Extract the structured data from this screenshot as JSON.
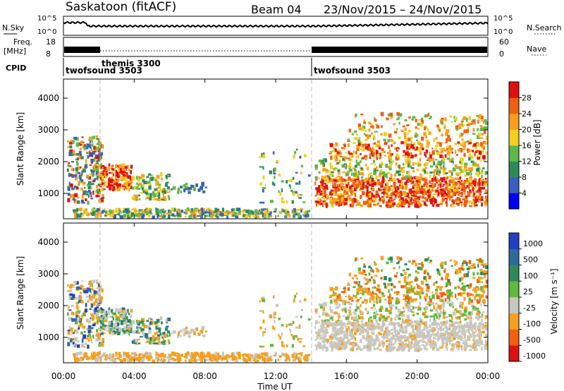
{
  "header": {
    "station": "Saskatoon (fitACF)",
    "beam": "Beam 04",
    "date_range": "23/Nov/2015 – 24/Nov/2015"
  },
  "top_panels": {
    "nsky_label": "N.Sky",
    "nsky_ticks": [
      "10^5",
      "10^0"
    ],
    "nsearch_label": "N.Search",
    "nsearch_ticks": [
      "10^5",
      "10^0"
    ],
    "freq_label_1": "Freq.",
    "freq_label_2": "[MHz]",
    "freq_ticks": [
      "18",
      "8"
    ],
    "nave_label": "Nave",
    "nave_ticks": [
      "60",
      "0"
    ],
    "cpid_label": "CPID",
    "cpid_programs": [
      {
        "name": "twofsound 3503",
        "start_hour": 0
      },
      {
        "name": "themis 3300",
        "start_hour": 2
      },
      {
        "name": "twofsound 3503",
        "start_hour": 14
      }
    ]
  },
  "time_axis": {
    "label": "Time UT",
    "ticks": [
      "00:00",
      "04:00",
      "08:00",
      "12:00",
      "16:00",
      "20:00",
      "00:00"
    ]
  },
  "chart_data": [
    {
      "type": "heatmap",
      "ylabel": "Slant Range [km]",
      "ylim": [
        200,
        4600
      ],
      "yticks": [
        "1000",
        "2000",
        "3000",
        "4000"
      ],
      "xlim_hours": [
        0,
        24
      ],
      "colorbar_label": "Power [dB]",
      "colorbar_ticks": [
        "4",
        "8",
        "12",
        "16",
        "20",
        "24",
        "28"
      ],
      "colorbar_range": [
        0,
        32
      ],
      "colorbar_colors": [
        "#0000ff",
        "#3a5fbf",
        "#2e8a5a",
        "#5cb84a",
        "#f0d020",
        "#f5a020",
        "#f06010",
        "#e01010"
      ]
    },
    {
      "type": "heatmap",
      "ylabel": "Slant Range [km]",
      "ylim": [
        200,
        4600
      ],
      "yticks": [
        "1000",
        "2000",
        "3000",
        "4000"
      ],
      "xlim_hours": [
        0,
        24
      ],
      "colorbar_label": "Velocity [m s⁻¹]",
      "colorbar_ticks": [
        "1000",
        "500",
        "100",
        "25",
        "-25",
        "-100",
        "-500",
        "-1000"
      ],
      "colorbar_colors": [
        "#2040c0",
        "#306a9a",
        "#2e8a5a",
        "#60b840",
        "#c8c8c0",
        "#f5a020",
        "#f06010",
        "#e01010"
      ]
    }
  ]
}
